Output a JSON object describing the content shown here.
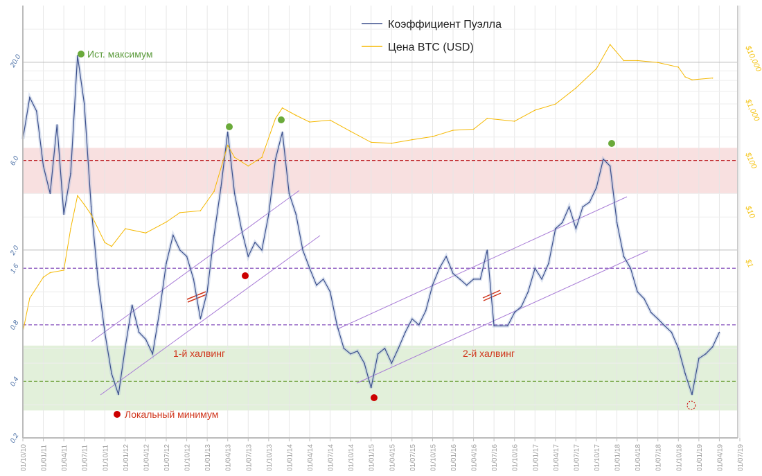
{
  "chart_data": {
    "type": "line",
    "title": "",
    "legend": {
      "placement": "top-center",
      "entries": [
        "Коэффициент Пуэлла",
        "Цена BTC (USD)"
      ]
    },
    "colors": {
      "puell": "#3b4f8c",
      "price": "#f5b800",
      "red_band": "#f8e0e0",
      "green_band": "#e2f0da",
      "red_line": "#c0282c",
      "purple_line": "#8e5cc0",
      "green_line": "#7aa84a",
      "channel": "#a77ad6"
    },
    "x_ticks": [
      "01/10/10",
      "01/01/11",
      "01/04/11",
      "01/07/11",
      "01/10/11",
      "01/01/12",
      "01/04/12",
      "01/07/12",
      "01/10/12",
      "01/01/13",
      "01/04/13",
      "01/07/13",
      "01/10/13",
      "01/01/14",
      "01/04/14",
      "01/07/14",
      "01/10/14",
      "01/01/15",
      "01/04/15",
      "01/07/15",
      "01/10/15",
      "01/01/16",
      "01/04/16",
      "01/07/16",
      "01/10/16",
      "01/01/17",
      "01/04/17",
      "01/07/17",
      "01/10/17",
      "01/01/18",
      "01/04/18",
      "01/07/18",
      "01/10/18",
      "01/01/19",
      "01/04/19",
      "01/07/19"
    ],
    "y_left": {
      "scale": "log",
      "ylim": [
        0.2,
        30
      ],
      "ticks": [
        "0.2",
        "0.4",
        "0.8",
        "1.6",
        "2.0",
        "6.0",
        "20.0"
      ],
      "tick_values": [
        0.2,
        0.4,
        0.8,
        1.6,
        2.0,
        6.0,
        20.0
      ]
    },
    "y_right": {
      "scale": "log",
      "ticks": [
        "$1",
        "$10",
        "$100",
        "$1,000",
        "$10,000"
      ],
      "tick_values": [
        1,
        10,
        100,
        1000,
        10000
      ]
    },
    "reference_lines": [
      {
        "value": 6.0,
        "style": "dashed",
        "color": "red"
      },
      {
        "value": 1.6,
        "style": "dashed",
        "color": "purple"
      },
      {
        "value": 0.8,
        "style": "dashed",
        "color": "purple"
      },
      {
        "value": 0.4,
        "style": "dashed",
        "color": "green"
      }
    ],
    "bands": [
      {
        "from": 4.0,
        "to": 7.0,
        "color": "red"
      },
      {
        "from": 0.28,
        "to": 0.62,
        "color": "green"
      }
    ],
    "series": [
      {
        "name": "Коэффициент Пуэлла",
        "axis": "left",
        "points": [
          [
            "2010-10",
            7.8
          ],
          [
            "2010-11",
            13
          ],
          [
            "2010-12",
            11
          ],
          [
            "2011-01",
            5.6
          ],
          [
            "2011-02",
            4.0
          ],
          [
            "2011-03",
            9.3
          ],
          [
            "2011-04",
            3.1
          ],
          [
            "2011-05",
            5.1
          ],
          [
            "2011-06",
            21.7
          ],
          [
            "2011-07",
            12
          ],
          [
            "2011-08",
            3.4
          ],
          [
            "2011-09",
            1.4
          ],
          [
            "2011-10",
            0.73
          ],
          [
            "2011-11",
            0.44
          ],
          [
            "2011-12",
            0.34
          ],
          [
            "2012-01",
            0.61
          ],
          [
            "2012-02",
            1.02
          ],
          [
            "2012-03",
            0.73
          ],
          [
            "2012-04",
            0.67
          ],
          [
            "2012-05",
            0.56
          ],
          [
            "2012-06",
            0.93
          ],
          [
            "2012-07",
            1.7
          ],
          [
            "2012-08",
            2.4
          ],
          [
            "2012-09",
            2.0
          ],
          [
            "2012-10",
            1.85
          ],
          [
            "2012-11",
            1.4
          ],
          [
            "2012-12",
            0.86
          ],
          [
            "2013-01",
            1.2
          ],
          [
            "2013-02",
            2.4
          ],
          [
            "2013-03",
            4.3
          ],
          [
            "2013-04",
            8.5
          ],
          [
            "2013-05",
            4.0
          ],
          [
            "2013-06",
            2.6
          ],
          [
            "2013-07",
            1.85
          ],
          [
            "2013-08",
            2.2
          ],
          [
            "2013-09",
            2.0
          ],
          [
            "2013-10",
            3.1
          ],
          [
            "2013-11",
            6.1
          ],
          [
            "2013-12",
            8.5
          ],
          [
            "2014-01",
            4.0
          ],
          [
            "2014-02",
            3.1
          ],
          [
            "2014-03",
            2.0
          ],
          [
            "2014-04",
            1.6
          ],
          [
            "2014-05",
            1.3
          ],
          [
            "2014-06",
            1.4
          ],
          [
            "2014-07",
            1.2
          ],
          [
            "2014-08",
            0.8
          ],
          [
            "2014-09",
            0.6
          ],
          [
            "2014-10",
            0.56
          ],
          [
            "2014-11",
            0.58
          ],
          [
            "2014-12",
            0.5
          ],
          [
            "2015-01",
            0.37
          ],
          [
            "2015-02",
            0.56
          ],
          [
            "2015-03",
            0.6
          ],
          [
            "2015-04",
            0.5
          ],
          [
            "2015-05",
            0.6
          ],
          [
            "2015-06",
            0.73
          ],
          [
            "2015-07",
            0.86
          ],
          [
            "2015-08",
            0.8
          ],
          [
            "2015-09",
            0.95
          ],
          [
            "2015-10",
            1.3
          ],
          [
            "2015-11",
            1.6
          ],
          [
            "2015-12",
            1.85
          ],
          [
            "2016-01",
            1.5
          ],
          [
            "2016-02",
            1.4
          ],
          [
            "2016-03",
            1.3
          ],
          [
            "2016-04",
            1.4
          ],
          [
            "2016-05",
            1.4
          ],
          [
            "2016-06",
            2.0
          ],
          [
            "2016-07",
            0.79
          ],
          [
            "2016-08",
            0.79
          ],
          [
            "2016-09",
            0.79
          ],
          [
            "2016-10",
            0.93
          ],
          [
            "2016-11",
            1.0
          ],
          [
            "2016-12",
            1.2
          ],
          [
            "2017-01",
            1.6
          ],
          [
            "2017-02",
            1.4
          ],
          [
            "2017-03",
            1.7
          ],
          [
            "2017-04",
            2.6
          ],
          [
            "2017-05",
            2.8
          ],
          [
            "2017-06",
            3.4
          ],
          [
            "2017-07",
            2.6
          ],
          [
            "2017-08",
            3.4
          ],
          [
            "2017-09",
            3.6
          ],
          [
            "2017-10",
            4.3
          ],
          [
            "2017-11",
            6.1
          ],
          [
            "2017-12",
            5.6
          ],
          [
            "2018-01",
            2.8
          ],
          [
            "2018-02",
            1.85
          ],
          [
            "2018-03",
            1.6
          ],
          [
            "2018-04",
            1.2
          ],
          [
            "2018-05",
            1.1
          ],
          [
            "2018-06",
            0.93
          ],
          [
            "2018-07",
            0.86
          ],
          [
            "2018-08",
            0.79
          ],
          [
            "2018-09",
            0.73
          ],
          [
            "2018-10",
            0.6
          ],
          [
            "2018-11",
            0.44
          ],
          [
            "2018-12",
            0.34
          ],
          [
            "2019-01",
            0.53
          ],
          [
            "2019-02",
            0.56
          ],
          [
            "2019-03",
            0.61
          ],
          [
            "2019-04",
            0.73
          ]
        ]
      },
      {
        "name": "Цена BTC (USD)",
        "axis": "right",
        "points": [
          [
            "2010-10",
            0.07
          ],
          [
            "2010-11",
            0.3
          ],
          [
            "2011-01",
            0.74
          ],
          [
            "2011-02",
            0.9
          ],
          [
            "2011-04",
            1
          ],
          [
            "2011-05",
            6
          ],
          [
            "2011-06",
            25
          ],
          [
            "2011-07",
            17
          ],
          [
            "2011-08",
            11
          ],
          [
            "2011-10",
            3.3
          ],
          [
            "2011-11",
            2.8
          ],
          [
            "2012-01",
            6
          ],
          [
            "2012-04",
            5
          ],
          [
            "2012-07",
            8
          ],
          [
            "2012-09",
            12
          ],
          [
            "2012-12",
            13
          ],
          [
            "2013-02",
            30
          ],
          [
            "2013-04",
            220
          ],
          [
            "2013-05",
            130
          ],
          [
            "2013-07",
            90
          ],
          [
            "2013-09",
            130
          ],
          [
            "2013-11",
            700
          ],
          [
            "2013-12",
            1100
          ],
          [
            "2014-02",
            800
          ],
          [
            "2014-04",
            600
          ],
          [
            "2014-07",
            650
          ],
          [
            "2014-10",
            400
          ],
          [
            "2015-01",
            250
          ],
          [
            "2015-04",
            240
          ],
          [
            "2015-07",
            280
          ],
          [
            "2015-10",
            320
          ],
          [
            "2016-01",
            420
          ],
          [
            "2016-04",
            440
          ],
          [
            "2016-06",
            700
          ],
          [
            "2016-10",
            620
          ],
          [
            "2017-01",
            1000
          ],
          [
            "2017-04",
            1300
          ],
          [
            "2017-07",
            2600
          ],
          [
            "2017-10",
            6000
          ],
          [
            "2017-12",
            17000
          ],
          [
            "2018-02",
            8500
          ],
          [
            "2018-04",
            8500
          ],
          [
            "2018-07",
            7800
          ],
          [
            "2018-10",
            6400
          ],
          [
            "2018-11",
            4200
          ],
          [
            "2018-12",
            3700
          ],
          [
            "2019-03",
            4000
          ]
        ]
      }
    ],
    "annotations": {
      "ath": "Ист. максимум",
      "local_min": "Локальный минимум",
      "halving1": "1-й халвинг",
      "halving2": "2-й халвинг"
    }
  }
}
